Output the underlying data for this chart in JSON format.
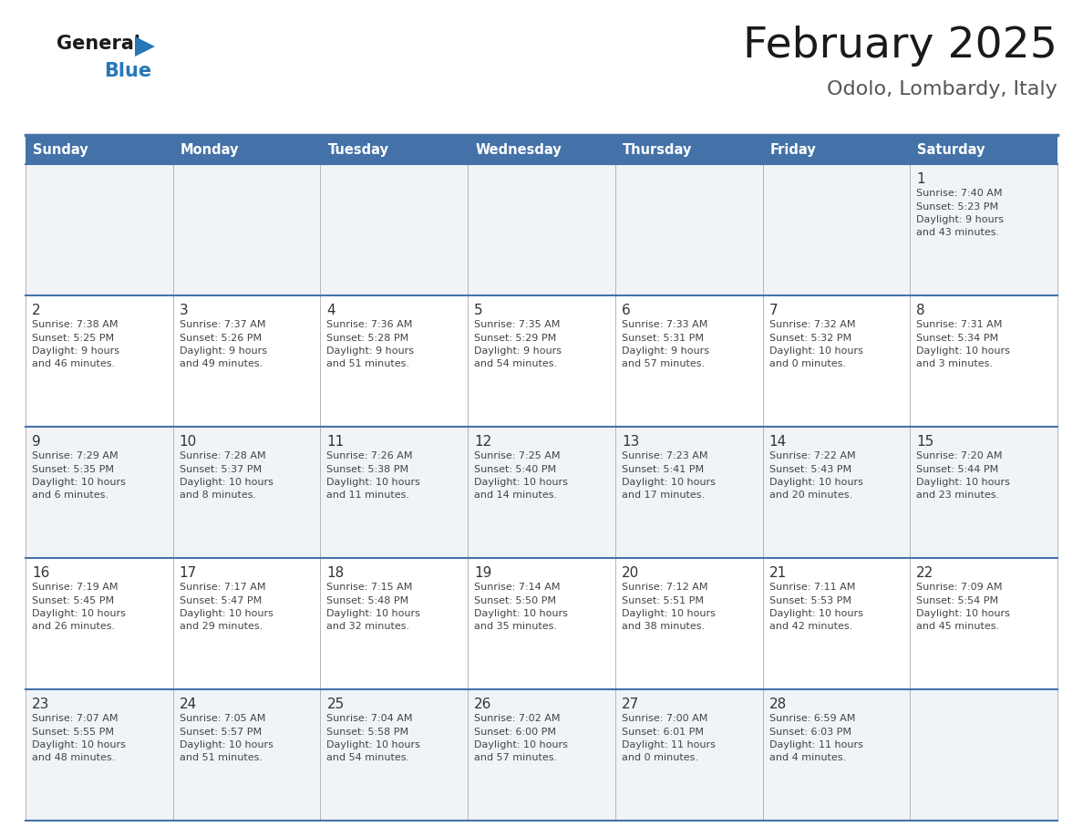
{
  "title": "February 2025",
  "subtitle": "Odolo, Lombardy, Italy",
  "header_color": "#4472a8",
  "header_text_color": "#ffffff",
  "border_color": "#4472a8",
  "text_color": "#333333",
  "day_headers": [
    "Sunday",
    "Monday",
    "Tuesday",
    "Wednesday",
    "Thursday",
    "Friday",
    "Saturday"
  ],
  "weeks": [
    [
      null,
      null,
      null,
      null,
      null,
      null,
      {
        "day": 1,
        "sunrise": "7:40 AM",
        "sunset": "5:23 PM",
        "daylight": "9 hours and 43 minutes."
      }
    ],
    [
      {
        "day": 2,
        "sunrise": "7:38 AM",
        "sunset": "5:25 PM",
        "daylight": "9 hours and 46 minutes."
      },
      {
        "day": 3,
        "sunrise": "7:37 AM",
        "sunset": "5:26 PM",
        "daylight": "9 hours and 49 minutes."
      },
      {
        "day": 4,
        "sunrise": "7:36 AM",
        "sunset": "5:28 PM",
        "daylight": "9 hours and 51 minutes."
      },
      {
        "day": 5,
        "sunrise": "7:35 AM",
        "sunset": "5:29 PM",
        "daylight": "9 hours and 54 minutes."
      },
      {
        "day": 6,
        "sunrise": "7:33 AM",
        "sunset": "5:31 PM",
        "daylight": "9 hours and 57 minutes."
      },
      {
        "day": 7,
        "sunrise": "7:32 AM",
        "sunset": "5:32 PM",
        "daylight": "10 hours and 0 minutes."
      },
      {
        "day": 8,
        "sunrise": "7:31 AM",
        "sunset": "5:34 PM",
        "daylight": "10 hours and 3 minutes."
      }
    ],
    [
      {
        "day": 9,
        "sunrise": "7:29 AM",
        "sunset": "5:35 PM",
        "daylight": "10 hours and 6 minutes."
      },
      {
        "day": 10,
        "sunrise": "7:28 AM",
        "sunset": "5:37 PM",
        "daylight": "10 hours and 8 minutes."
      },
      {
        "day": 11,
        "sunrise": "7:26 AM",
        "sunset": "5:38 PM",
        "daylight": "10 hours and 11 minutes."
      },
      {
        "day": 12,
        "sunrise": "7:25 AM",
        "sunset": "5:40 PM",
        "daylight": "10 hours and 14 minutes."
      },
      {
        "day": 13,
        "sunrise": "7:23 AM",
        "sunset": "5:41 PM",
        "daylight": "10 hours and 17 minutes."
      },
      {
        "day": 14,
        "sunrise": "7:22 AM",
        "sunset": "5:43 PM",
        "daylight": "10 hours and 20 minutes."
      },
      {
        "day": 15,
        "sunrise": "7:20 AM",
        "sunset": "5:44 PM",
        "daylight": "10 hours and 23 minutes."
      }
    ],
    [
      {
        "day": 16,
        "sunrise": "7:19 AM",
        "sunset": "5:45 PM",
        "daylight": "10 hours and 26 minutes."
      },
      {
        "day": 17,
        "sunrise": "7:17 AM",
        "sunset": "5:47 PM",
        "daylight": "10 hours and 29 minutes."
      },
      {
        "day": 18,
        "sunrise": "7:15 AM",
        "sunset": "5:48 PM",
        "daylight": "10 hours and 32 minutes."
      },
      {
        "day": 19,
        "sunrise": "7:14 AM",
        "sunset": "5:50 PM",
        "daylight": "10 hours and 35 minutes."
      },
      {
        "day": 20,
        "sunrise": "7:12 AM",
        "sunset": "5:51 PM",
        "daylight": "10 hours and 38 minutes."
      },
      {
        "day": 21,
        "sunrise": "7:11 AM",
        "sunset": "5:53 PM",
        "daylight": "10 hours and 42 minutes."
      },
      {
        "day": 22,
        "sunrise": "7:09 AM",
        "sunset": "5:54 PM",
        "daylight": "10 hours and 45 minutes."
      }
    ],
    [
      {
        "day": 23,
        "sunrise": "7:07 AM",
        "sunset": "5:55 PM",
        "daylight": "10 hours and 48 minutes."
      },
      {
        "day": 24,
        "sunrise": "7:05 AM",
        "sunset": "5:57 PM",
        "daylight": "10 hours and 51 minutes."
      },
      {
        "day": 25,
        "sunrise": "7:04 AM",
        "sunset": "5:58 PM",
        "daylight": "10 hours and 54 minutes."
      },
      {
        "day": 26,
        "sunrise": "7:02 AM",
        "sunset": "6:00 PM",
        "daylight": "10 hours and 57 minutes."
      },
      {
        "day": 27,
        "sunrise": "7:00 AM",
        "sunset": "6:01 PM",
        "daylight": "11 hours and 0 minutes."
      },
      {
        "day": 28,
        "sunrise": "6:59 AM",
        "sunset": "6:03 PM",
        "daylight": "11 hours and 4 minutes."
      },
      null
    ]
  ]
}
